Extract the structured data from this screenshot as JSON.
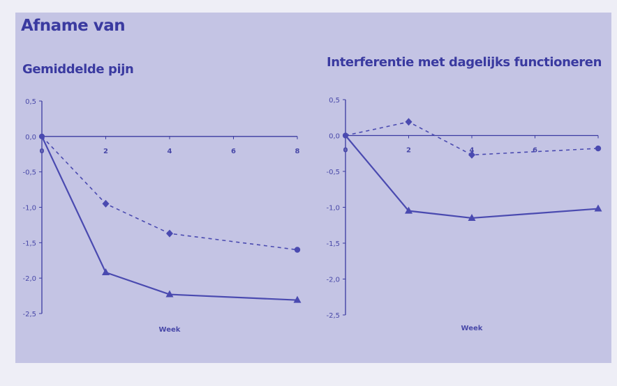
{
  "page": {
    "heading": "Afname van"
  },
  "colors": {
    "background": "#eeeef6",
    "panel": "#c4c4e4",
    "ink": "#3a3aa0",
    "line": "#4a4ab0"
  },
  "chart_data": [
    {
      "type": "line",
      "title": "Gemiddelde pijn",
      "xlabel": "Week",
      "ylabel": "",
      "x_ticks": [
        0,
        2,
        4,
        6,
        8
      ],
      "x_tick_labels": [
        "0",
        "2",
        "4",
        "6",
        "8"
      ],
      "y_ticks": [
        0.5,
        0.0,
        -0.5,
        -1.0,
        -1.5,
        -2.0,
        -2.5
      ],
      "y_tick_labels": [
        "0,5",
        "0,0",
        "-0,5",
        "-1,0",
        "-1,5",
        "-2,0",
        "-2,5"
      ],
      "xlim": [
        0,
        8
      ],
      "ylim": [
        -2.5,
        0.5
      ],
      "grid": false,
      "series": [
        {
          "style": "solid",
          "marker": "triangle",
          "x": [
            0,
            2,
            4,
            8
          ],
          "y": [
            0.0,
            -1.92,
            -2.23,
            -2.31
          ]
        },
        {
          "style": "dashed",
          "marker": "diamond",
          "x": [
            0,
            2,
            4,
            8
          ],
          "y": [
            0.0,
            -0.95,
            -1.37,
            -1.6
          ]
        }
      ]
    },
    {
      "type": "line",
      "title": "Interferentie met dagelijks functioneren",
      "xlabel": "Week",
      "ylabel": "",
      "x_ticks": [
        0,
        2,
        4,
        6,
        8
      ],
      "x_tick_labels": [
        "0",
        "2",
        "4",
        "6",
        ""
      ],
      "y_ticks": [
        0.5,
        0.0,
        -0.5,
        -1.0,
        -1.5,
        -2.0,
        -2.5
      ],
      "y_tick_labels": [
        "0,5",
        "0,0",
        "-0,5",
        "-1,0",
        "-1,5",
        "-2,0",
        "-2,5"
      ],
      "xlim": [
        0,
        8
      ],
      "ylim": [
        -2.5,
        0.5
      ],
      "grid": false,
      "series": [
        {
          "style": "solid",
          "marker": "triangle",
          "x": [
            0,
            2,
            4,
            8
          ],
          "y": [
            0.0,
            -1.05,
            -1.15,
            -1.02
          ]
        },
        {
          "style": "dashed",
          "marker": "diamond",
          "x": [
            0,
            2,
            4,
            8
          ],
          "y": [
            0.0,
            0.19,
            -0.27,
            -0.18
          ]
        }
      ]
    }
  ]
}
